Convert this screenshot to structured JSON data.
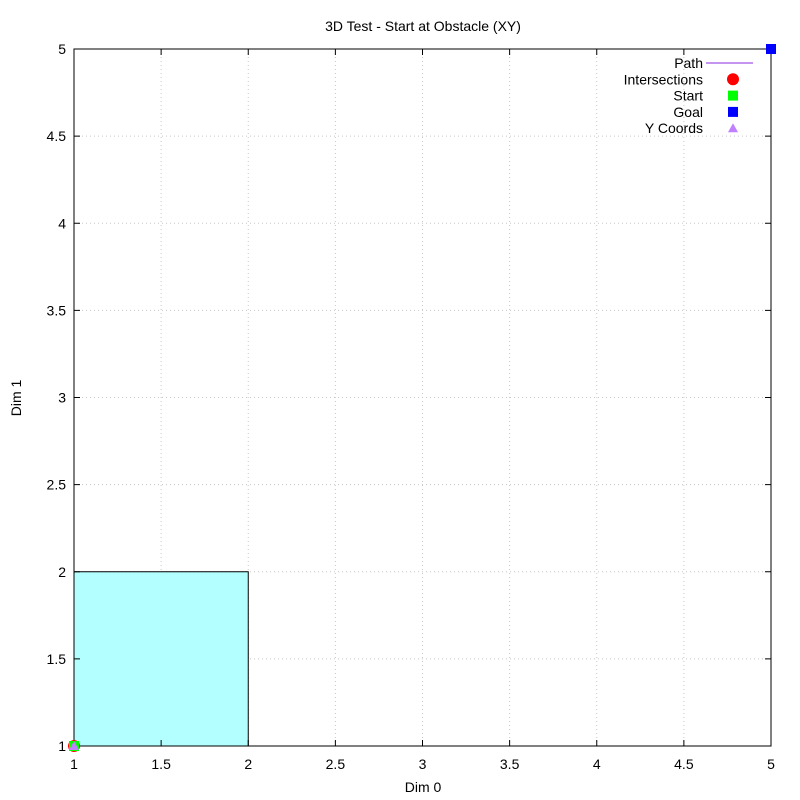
{
  "chart_data": {
    "type": "scatter",
    "title": "3D Test - Start at Obstacle (XY)",
    "xlabel": "Dim 0",
    "ylabel": "Dim 1",
    "xlim": [
      1,
      5
    ],
    "ylim": [
      1,
      5
    ],
    "x_ticks": [
      "1",
      "1.5",
      "2",
      "2.5",
      "3",
      "3.5",
      "4",
      "4.5",
      "5"
    ],
    "y_ticks": [
      "1",
      "1.5",
      "2",
      "2.5",
      "3",
      "3.5",
      "4",
      "4.5",
      "5"
    ],
    "grid": true,
    "legend_position": "top-right",
    "obstacles": [
      {
        "x_min": 1,
        "x_max": 2,
        "y_min": 1,
        "y_max": 2,
        "color": "#b3ffff"
      }
    ],
    "series": [
      {
        "name": "Path",
        "marker": "line",
        "color": "#8a2be2",
        "points": []
      },
      {
        "name": "Intersections",
        "marker": "circle",
        "color": "#ff0000",
        "points": [
          [
            1,
            1
          ]
        ]
      },
      {
        "name": "Start",
        "marker": "square",
        "color": "#00ff00",
        "points": [
          [
            1,
            1
          ]
        ]
      },
      {
        "name": "Goal",
        "marker": "square",
        "color": "#0000ff",
        "points": [
          [
            5,
            5
          ]
        ]
      },
      {
        "name": "Y Coords",
        "marker": "triangle",
        "color": "#c080ff",
        "points": [
          [
            1,
            1
          ]
        ]
      }
    ]
  }
}
